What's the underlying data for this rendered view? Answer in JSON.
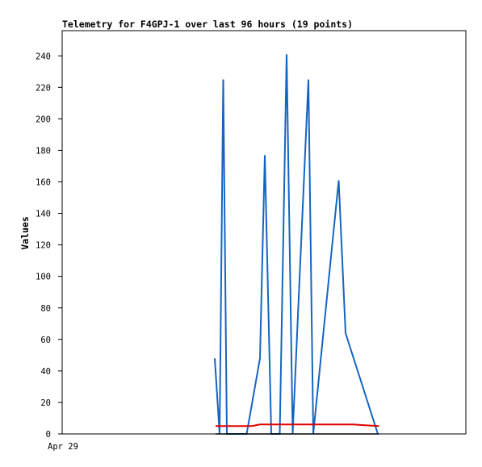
{
  "chart_data": {
    "type": "line",
    "title": "Telemetry for F4GPJ-1 over last 96 hours (19 points)",
    "xlabel": "",
    "ylabel": "Values",
    "x_tick_labels": [
      "Apr 29"
    ],
    "ylim": [
      0,
      256
    ],
    "xlim": [
      0,
      100
    ],
    "yticks": [
      0,
      20,
      40,
      60,
      80,
      100,
      120,
      140,
      160,
      180,
      200,
      220,
      240
    ],
    "grid": false,
    "series": [
      {
        "color": "#1565c0",
        "x": [
          37.8,
          39.0,
          39.9,
          40.8,
          45.7,
          49.0,
          50.2,
          51.8,
          53.9,
          55.6,
          57.1,
          61.0,
          62.2,
          68.5,
          70.2,
          78.2
        ],
        "values": [
          48,
          0,
          225,
          0,
          0,
          48,
          177,
          0,
          0,
          241,
          0,
          225,
          0,
          161,
          64,
          0
        ]
      },
      {
        "color": "#e00000",
        "x": [
          38.0,
          47.0,
          49.0,
          72.0,
          75.0,
          78.5
        ],
        "values": [
          5,
          5,
          6,
          6,
          5.5,
          5
        ]
      },
      {
        "color": "#000000",
        "x": [
          38.0,
          78.5
        ],
        "values": [
          0,
          0
        ]
      }
    ]
  }
}
